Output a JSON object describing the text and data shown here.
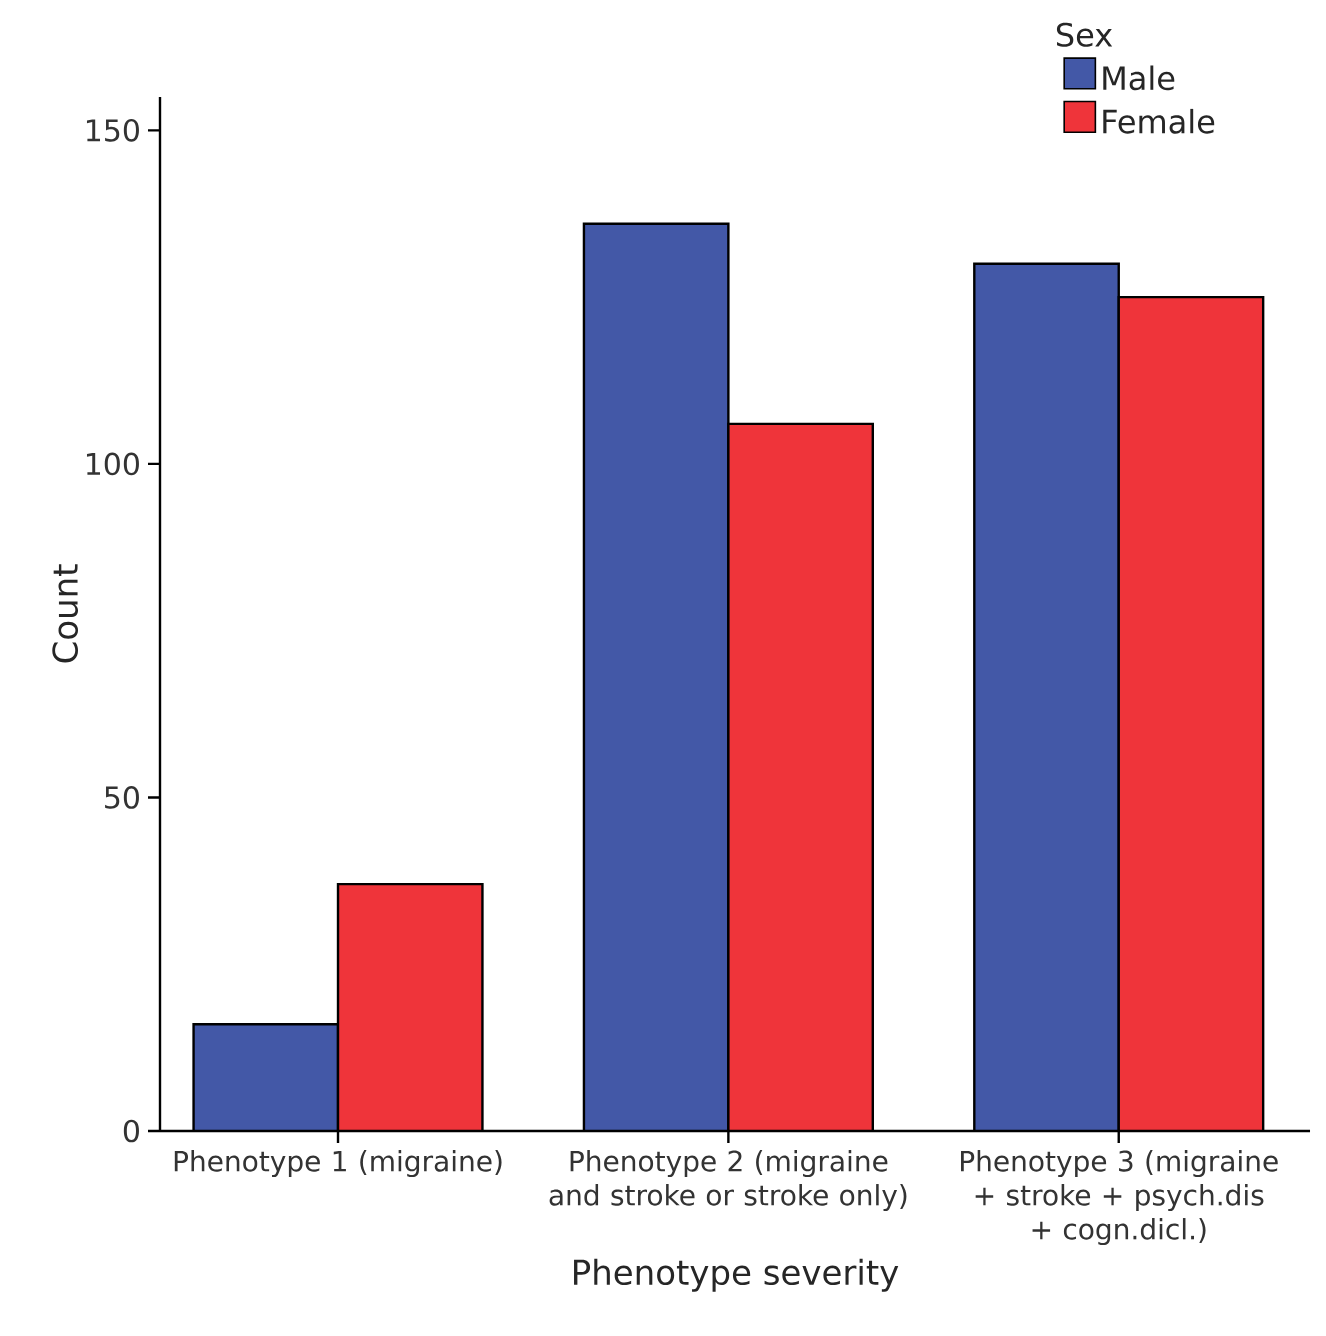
{
  "chart_data": {
    "type": "bar",
    "xlabel": "Phenotype severity",
    "ylabel": "Count",
    "legend_title": "Sex",
    "legend": "top right",
    "categories": [
      "Phenotype 1 (migraine)",
      "Phenotype 2 (migraine and stroke or stroke only)",
      "Phenotype 3 (migraine + stroke + psych.dis + cogn.dicl.)"
    ],
    "series": [
      {
        "name": "Male",
        "color": "#4358a7",
        "values": [
          16,
          136,
          130
        ]
      },
      {
        "name": "Female",
        "color": "#ef343a",
        "values": [
          37,
          106,
          125
        ]
      }
    ],
    "ylim": [
      0,
      155
    ],
    "yticks": [
      0,
      50,
      100,
      150
    ]
  }
}
